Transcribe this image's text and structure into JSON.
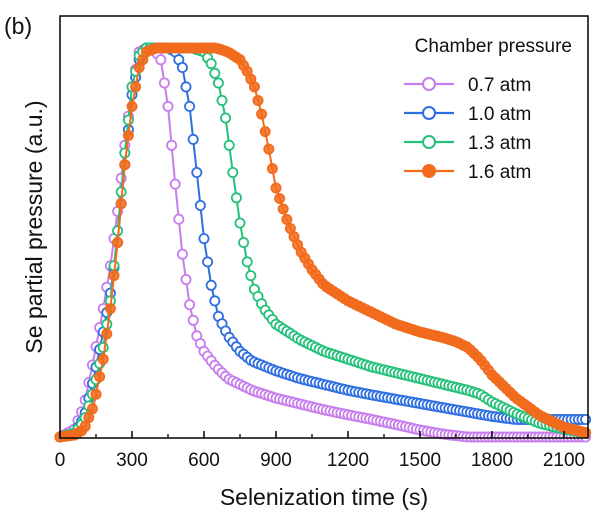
{
  "chart_data": {
    "type": "line",
    "panel_label": "(b)",
    "title": "",
    "xlabel": "Selenization time (s)",
    "ylabel": "Se partial pressure (a.u.)",
    "xlim": [
      0,
      2200
    ],
    "ylim": [
      0,
      1
    ],
    "x_ticks": [
      0,
      300,
      600,
      900,
      1200,
      1500,
      1800,
      2100
    ],
    "y_ticks_shown": false,
    "grid": false,
    "legend": {
      "title": "Chamber pressure",
      "position": "top-right"
    },
    "series": [
      {
        "name": "0.7 atm",
        "color": "#c77dec",
        "marker": "open-circle",
        "points": [
          [
            0,
            0.0
          ],
          [
            60,
            0.02
          ],
          [
            100,
            0.08
          ],
          [
            140,
            0.2
          ],
          [
            180,
            0.33
          ],
          [
            210,
            0.44
          ],
          [
            240,
            0.58
          ],
          [
            270,
            0.75
          ],
          [
            300,
            0.9
          ],
          [
            330,
            0.99
          ],
          [
            360,
            1.0
          ],
          [
            390,
            1.0
          ],
          [
            420,
            0.97
          ],
          [
            450,
            0.85
          ],
          [
            480,
            0.65
          ],
          [
            510,
            0.47
          ],
          [
            540,
            0.34
          ],
          [
            570,
            0.26
          ],
          [
            600,
            0.22
          ],
          [
            650,
            0.18
          ],
          [
            700,
            0.15
          ],
          [
            800,
            0.12
          ],
          [
            900,
            0.1
          ],
          [
            1000,
            0.085
          ],
          [
            1100,
            0.07
          ],
          [
            1200,
            0.057
          ],
          [
            1300,
            0.045
          ],
          [
            1400,
            0.032
          ],
          [
            1500,
            0.018
          ],
          [
            1600,
            0.007
          ],
          [
            1700,
            0.0
          ],
          [
            1800,
            0.0
          ],
          [
            1900,
            0.0
          ],
          [
            2000,
            0.0
          ],
          [
            2100,
            0.0
          ],
          [
            2200,
            0.0
          ]
        ]
      },
      {
        "name": "1.0 atm",
        "color": "#2e6fe0",
        "marker": "open-circle",
        "points": [
          [
            0,
            0.0
          ],
          [
            60,
            0.01
          ],
          [
            100,
            0.05
          ],
          [
            140,
            0.15
          ],
          [
            180,
            0.27
          ],
          [
            210,
            0.37
          ],
          [
            240,
            0.5
          ],
          [
            270,
            0.7
          ],
          [
            300,
            0.88
          ],
          [
            330,
            0.97
          ],
          [
            360,
            1.0
          ],
          [
            400,
            1.0
          ],
          [
            450,
            1.0
          ],
          [
            480,
            0.99
          ],
          [
            510,
            0.95
          ],
          [
            540,
            0.85
          ],
          [
            570,
            0.68
          ],
          [
            600,
            0.51
          ],
          [
            630,
            0.39
          ],
          [
            660,
            0.31
          ],
          [
            700,
            0.26
          ],
          [
            750,
            0.22
          ],
          [
            800,
            0.195
          ],
          [
            900,
            0.17
          ],
          [
            1000,
            0.15
          ],
          [
            1100,
            0.135
          ],
          [
            1200,
            0.12
          ],
          [
            1300,
            0.108
          ],
          [
            1400,
            0.097
          ],
          [
            1500,
            0.086
          ],
          [
            1600,
            0.075
          ],
          [
            1700,
            0.064
          ],
          [
            1800,
            0.053
          ],
          [
            1900,
            0.045
          ],
          [
            2000,
            0.045
          ],
          [
            2100,
            0.045
          ],
          [
            2200,
            0.045
          ]
        ]
      },
      {
        "name": "1.3 atm",
        "color": "#25c07a",
        "marker": "open-circle",
        "points": [
          [
            0,
            0.0
          ],
          [
            60,
            0.01
          ],
          [
            100,
            0.04
          ],
          [
            140,
            0.12
          ],
          [
            180,
            0.23
          ],
          [
            210,
            0.35
          ],
          [
            240,
            0.53
          ],
          [
            270,
            0.73
          ],
          [
            300,
            0.9
          ],
          [
            330,
            0.98
          ],
          [
            360,
            1.0
          ],
          [
            400,
            1.0
          ],
          [
            450,
            1.0
          ],
          [
            500,
            1.0
          ],
          [
            550,
            1.0
          ],
          [
            600,
            0.99
          ],
          [
            630,
            0.96
          ],
          [
            660,
            0.91
          ],
          [
            690,
            0.82
          ],
          [
            720,
            0.68
          ],
          [
            750,
            0.55
          ],
          [
            780,
            0.45
          ],
          [
            810,
            0.38
          ],
          [
            850,
            0.33
          ],
          [
            900,
            0.29
          ],
          [
            1000,
            0.25
          ],
          [
            1100,
            0.22
          ],
          [
            1200,
            0.2
          ],
          [
            1300,
            0.18
          ],
          [
            1400,
            0.165
          ],
          [
            1500,
            0.15
          ],
          [
            1600,
            0.135
          ],
          [
            1700,
            0.12
          ],
          [
            1750,
            0.11
          ],
          [
            1800,
            0.09
          ],
          [
            1900,
            0.06
          ],
          [
            2000,
            0.035
          ],
          [
            2100,
            0.02
          ],
          [
            2200,
            0.01
          ]
        ]
      },
      {
        "name": "1.6 atm",
        "color": "#f26b1d",
        "marker": "filled-circle",
        "points": [
          [
            0,
            0.0
          ],
          [
            60,
            0.005
          ],
          [
            100,
            0.02
          ],
          [
            140,
            0.08
          ],
          [
            180,
            0.2
          ],
          [
            210,
            0.33
          ],
          [
            240,
            0.5
          ],
          [
            270,
            0.7
          ],
          [
            300,
            0.85
          ],
          [
            330,
            0.95
          ],
          [
            360,
            0.99
          ],
          [
            400,
            1.0
          ],
          [
            450,
            1.0
          ],
          [
            500,
            1.0
          ],
          [
            550,
            1.0
          ],
          [
            600,
            1.0
          ],
          [
            650,
            1.0
          ],
          [
            700,
            0.99
          ],
          [
            750,
            0.97
          ],
          [
            780,
            0.94
          ],
          [
            810,
            0.9
          ],
          [
            840,
            0.83
          ],
          [
            870,
            0.74
          ],
          [
            900,
            0.64
          ],
          [
            950,
            0.55
          ],
          [
            1000,
            0.48
          ],
          [
            1050,
            0.43
          ],
          [
            1100,
            0.39
          ],
          [
            1200,
            0.35
          ],
          [
            1300,
            0.32
          ],
          [
            1400,
            0.29
          ],
          [
            1500,
            0.27
          ],
          [
            1600,
            0.255
          ],
          [
            1650,
            0.245
          ],
          [
            1700,
            0.23
          ],
          [
            1750,
            0.2
          ],
          [
            1800,
            0.16
          ],
          [
            1900,
            0.1
          ],
          [
            2000,
            0.055
          ],
          [
            2100,
            0.025
          ],
          [
            2200,
            0.01
          ]
        ]
      }
    ]
  }
}
